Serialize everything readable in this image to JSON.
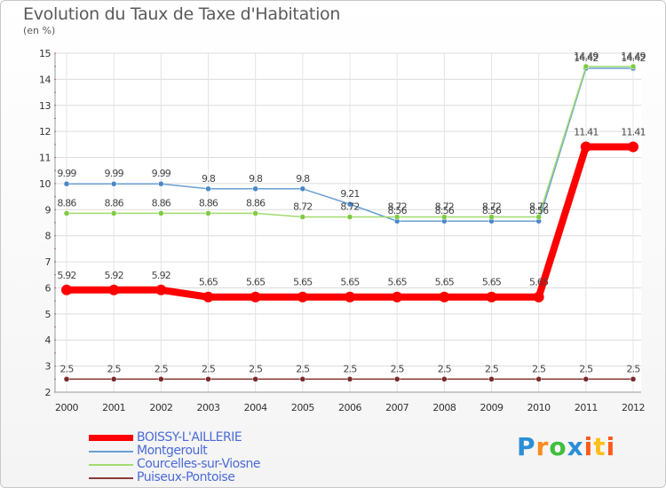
{
  "title": "Evolution du Taux de Taxe d'Habitation",
  "subtitle": "(en %)",
  "brand": "Proxiti",
  "chart_data": {
    "type": "line",
    "x": [
      "2000",
      "2001",
      "2002",
      "2003",
      "2004",
      "2005",
      "2006",
      "2007",
      "2008",
      "2009",
      "2010",
      "2011",
      "2012"
    ],
    "ylim": [
      2,
      15
    ],
    "yticks": [
      2,
      3,
      4,
      5,
      6,
      7,
      8,
      9,
      10,
      11,
      12,
      13,
      14,
      15
    ],
    "grid": true,
    "legend_position": "bottom-left",
    "series": [
      {
        "name": "BOISSY-L'AILLERIE",
        "color": "#ff0000",
        "values": [
          5.92,
          5.92,
          5.92,
          5.65,
          5.65,
          5.65,
          5.65,
          5.65,
          5.65,
          5.65,
          5.65,
          11.41,
          11.41
        ],
        "labels": [
          "5.92",
          "5.92",
          "5.92",
          "5.65",
          "5.65",
          "5.65",
          "5.65",
          "5.65",
          "5.65",
          "5.65",
          "5.65",
          "11.41",
          "11.41"
        ]
      },
      {
        "name": "Montgeroult",
        "color": "#6a9fd4",
        "values": [
          9.99,
          9.99,
          9.99,
          9.8,
          9.8,
          9.8,
          9.21,
          8.56,
          8.56,
          8.56,
          8.56,
          14.42,
          14.42
        ],
        "labels": [
          "9.99",
          "9.99",
          "9.99",
          "9.8",
          "9.8",
          "9.8",
          "9.21",
          "8.56",
          "8.56",
          "8.56",
          "8.56",
          "14.42",
          "14.42"
        ]
      },
      {
        "name": "Courcelles-sur-Viosne",
        "color": "#9fdc6f",
        "values": [
          8.86,
          8.86,
          8.86,
          8.86,
          8.86,
          8.72,
          8.72,
          8.72,
          8.72,
          8.72,
          8.72,
          14.49,
          14.49
        ],
        "labels": [
          "8.86",
          "8.86",
          "8.86",
          "8.86",
          "8.86",
          "8.72",
          "8.72",
          "8.72",
          "8.72",
          "8.72",
          "8.72",
          "14.49",
          "14.49"
        ]
      },
      {
        "name": "Puiseux-Pontoise",
        "color": "#8b3a3a",
        "values": [
          2.5,
          2.5,
          2.5,
          2.5,
          2.5,
          2.5,
          2.5,
          2.5,
          2.5,
          2.5,
          2.5,
          2.5,
          2.5
        ],
        "labels": [
          "2.5",
          "2.5",
          "2.5",
          "2.5",
          "2.5",
          "2.5",
          "2.5",
          "2.5",
          "2.5",
          "2.5",
          "2.5",
          "2.5",
          "2.5"
        ]
      }
    ]
  }
}
